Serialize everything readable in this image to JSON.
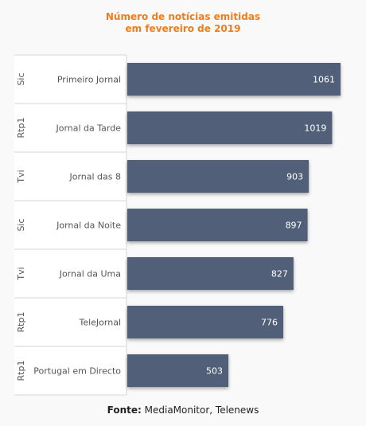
{
  "title_line1": "Número de notícias emitidas",
  "title_line2": "em fevereiro de 2019",
  "source_label": "Fonte:",
  "source_text": "MediaMonitor, Telenews",
  "colors": {
    "bar": "#516178",
    "title": "#f07d1a",
    "label_text": "#555555",
    "grid": "#d6d6d6",
    "value_text": "#ffffff"
  },
  "chart_data": {
    "type": "bar",
    "orientation": "horizontal",
    "categories": [
      {
        "channel": "Sic",
        "program": "Primeiro Jornal"
      },
      {
        "channel": "Rtp1",
        "program": "Jornal da Tarde"
      },
      {
        "channel": "Tvi",
        "program": "Jornal das 8"
      },
      {
        "channel": "Sic",
        "program": "Jornal da Noite"
      },
      {
        "channel": "Tvi",
        "program": "Jornal da Uma"
      },
      {
        "channel": "Rtp1",
        "program": "TeleJornal"
      },
      {
        "channel": "Rtp1",
        "program": "Portugal em Directo"
      }
    ],
    "values": [
      1061,
      1019,
      903,
      897,
      827,
      776,
      503
    ],
    "xlim": [
      0,
      1061
    ],
    "grid": false,
    "data_labels": true
  }
}
